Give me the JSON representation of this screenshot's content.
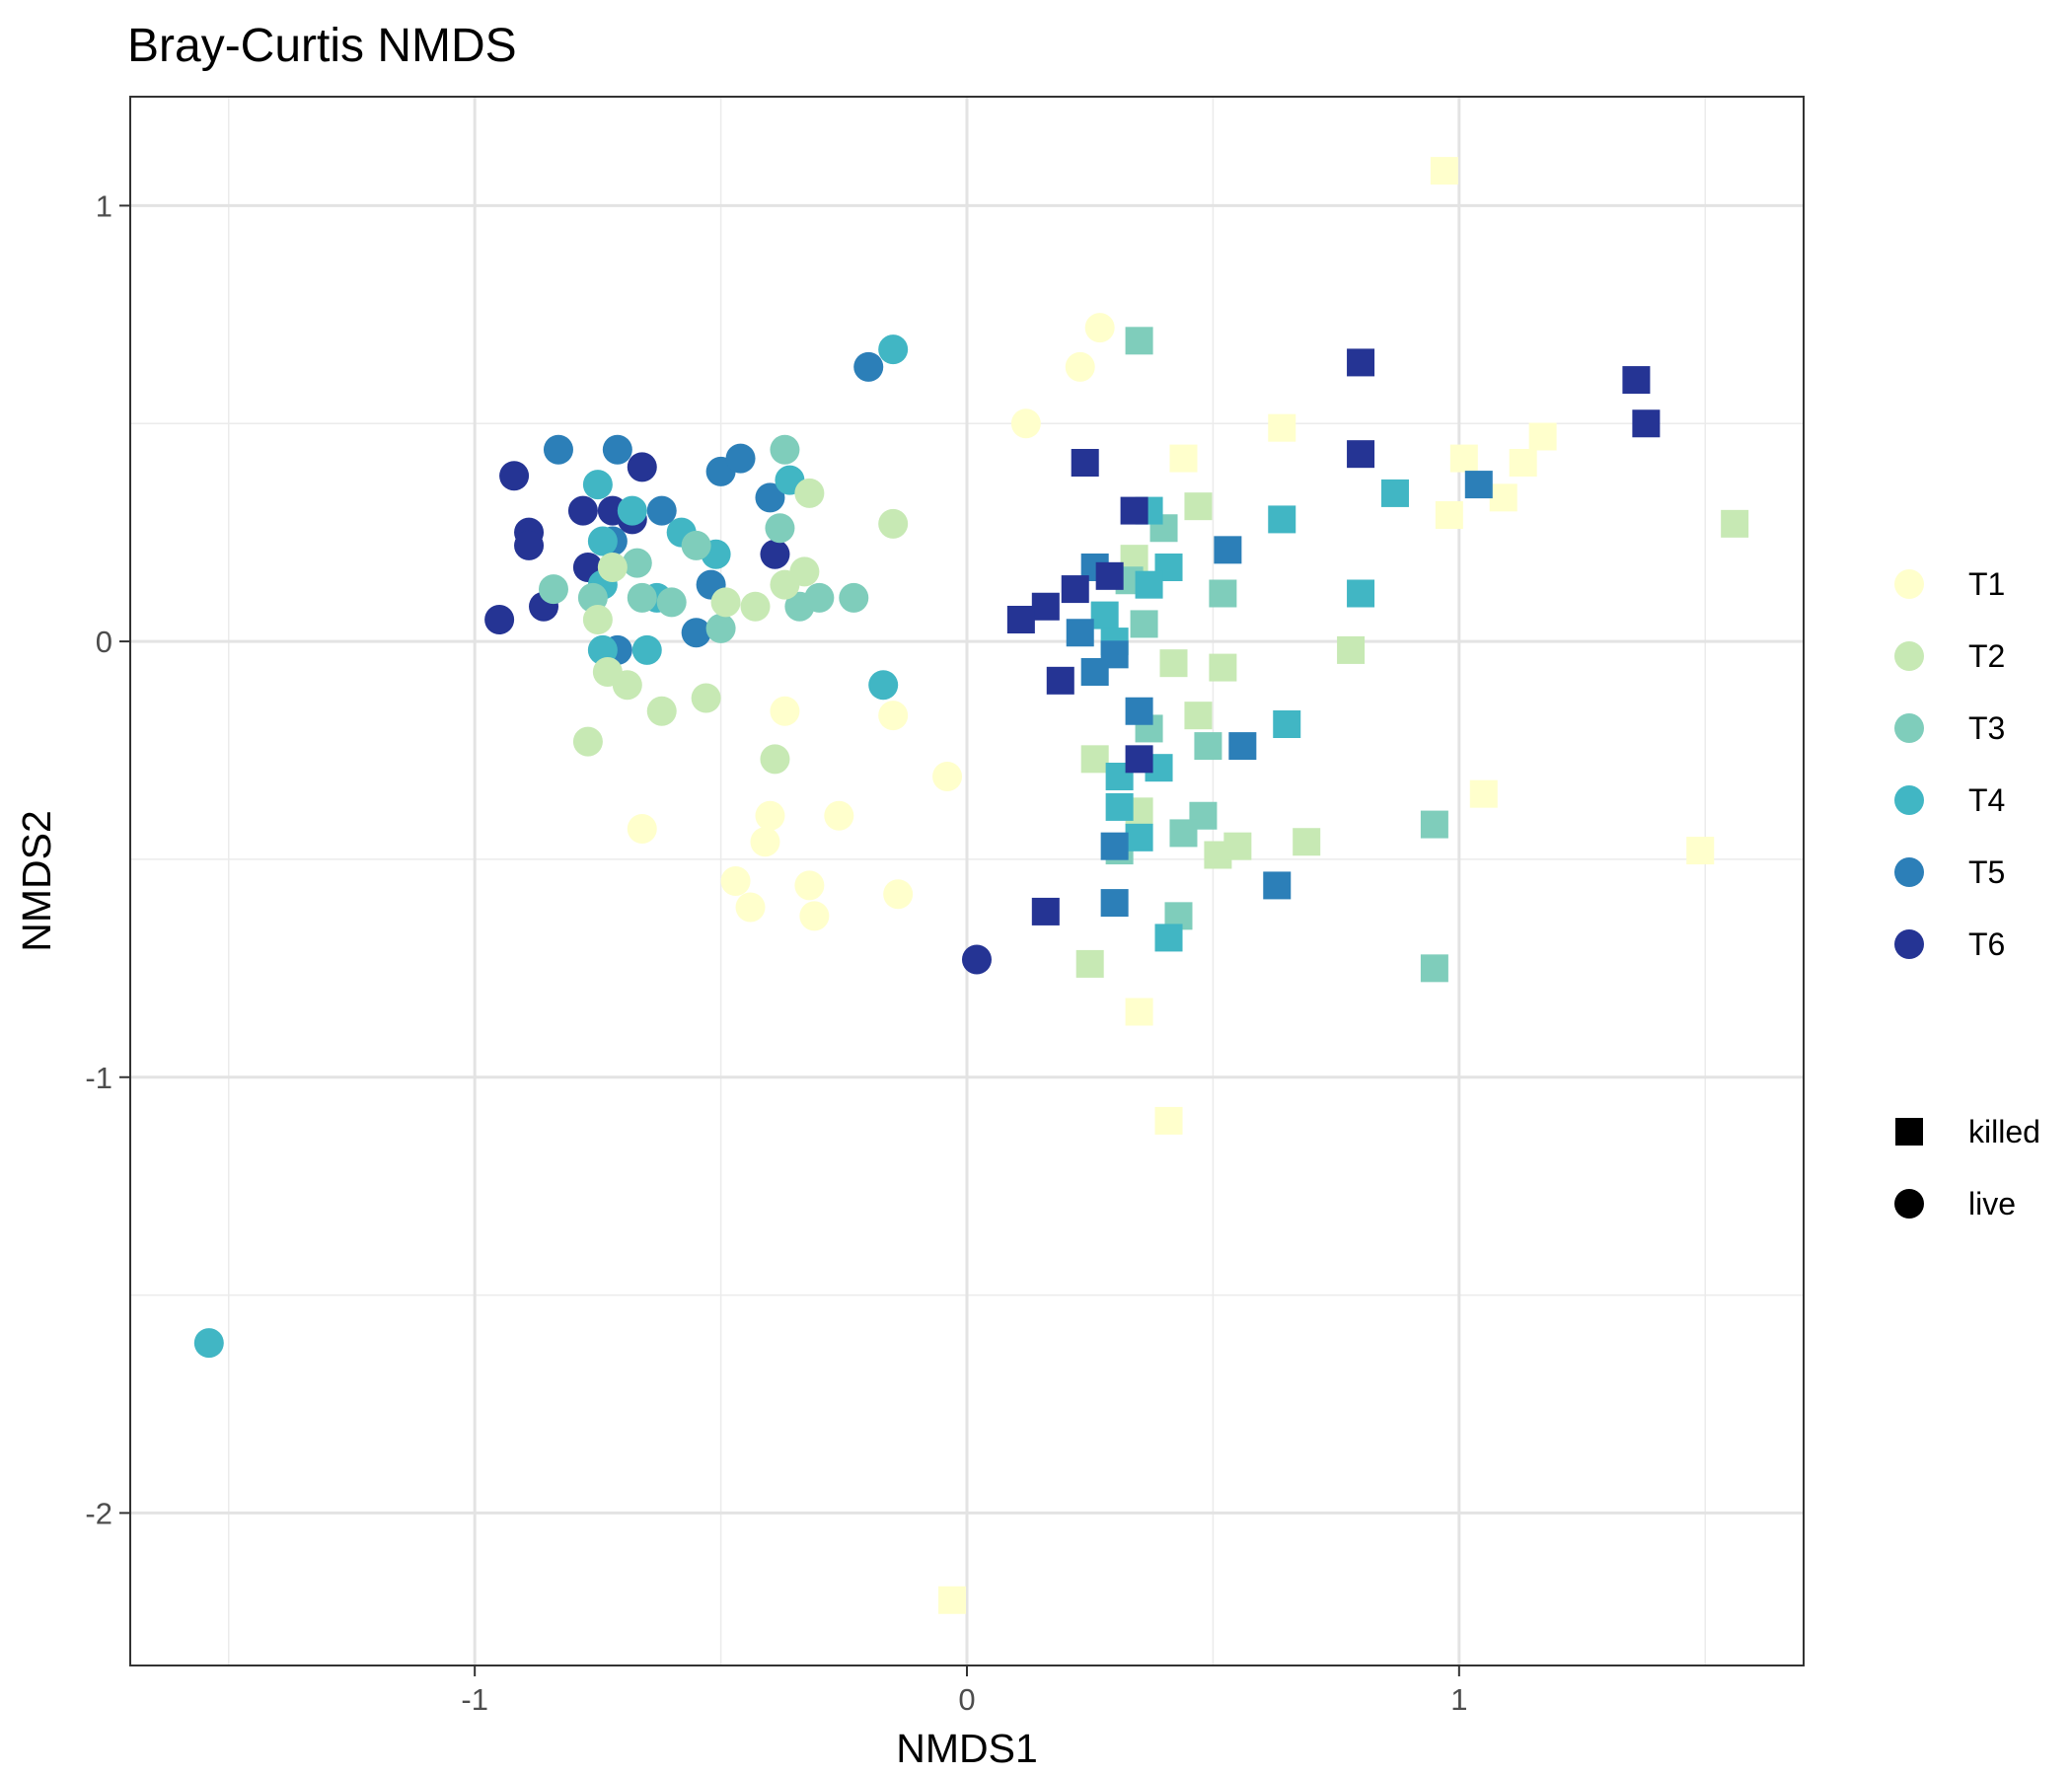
{
  "chart_data": {
    "type": "scatter",
    "title": "Bray-Curtis NMDS",
    "xlabel": "NMDS1",
    "ylabel": "NMDS2",
    "xlim": [
      -1.7,
      1.7
    ],
    "ylim": [
      -2.35,
      1.25
    ],
    "x_ticks": [
      -1,
      0,
      1
    ],
    "y_ticks": [
      1,
      0,
      -1,
      -2
    ],
    "grid": true,
    "legend_position": "right",
    "color_legend": [
      {
        "label": "T1",
        "color": "#ffffcc"
      },
      {
        "label": "T2",
        "color": "#c7e9b4"
      },
      {
        "label": "T3",
        "color": "#7fcdbb"
      },
      {
        "label": "T4",
        "color": "#41b6c4"
      },
      {
        "label": "T5",
        "color": "#2c7fb8"
      },
      {
        "label": "T6",
        "color": "#253494"
      }
    ],
    "shape_legend": [
      {
        "label": "killed",
        "shape": "square"
      },
      {
        "label": "live",
        "shape": "circle"
      }
    ],
    "points": [
      {
        "x": -0.92,
        "y": 0.38,
        "group": "T6",
        "shape": "circle"
      },
      {
        "x": -0.89,
        "y": 0.25,
        "group": "T6",
        "shape": "circle"
      },
      {
        "x": -0.89,
        "y": 0.22,
        "group": "T6",
        "shape": "circle"
      },
      {
        "x": -0.95,
        "y": 0.05,
        "group": "T6",
        "shape": "circle"
      },
      {
        "x": -0.86,
        "y": 0.08,
        "group": "T6",
        "shape": "circle"
      },
      {
        "x": -0.78,
        "y": 0.3,
        "group": "T6",
        "shape": "circle"
      },
      {
        "x": -0.72,
        "y": 0.3,
        "group": "T6",
        "shape": "circle"
      },
      {
        "x": -0.68,
        "y": 0.28,
        "group": "T6",
        "shape": "circle"
      },
      {
        "x": -0.66,
        "y": 0.4,
        "group": "T6",
        "shape": "circle"
      },
      {
        "x": -0.77,
        "y": 0.17,
        "group": "T6",
        "shape": "circle"
      },
      {
        "x": -0.39,
        "y": 0.2,
        "group": "T6",
        "shape": "circle"
      },
      {
        "x": 0.02,
        "y": -0.73,
        "group": "T6",
        "shape": "circle"
      },
      {
        "x": -0.83,
        "y": 0.44,
        "group": "T5",
        "shape": "circle"
      },
      {
        "x": -0.71,
        "y": 0.44,
        "group": "T5",
        "shape": "circle"
      },
      {
        "x": -0.62,
        "y": 0.3,
        "group": "T5",
        "shape": "circle"
      },
      {
        "x": -0.5,
        "y": 0.39,
        "group": "T5",
        "shape": "circle"
      },
      {
        "x": -0.46,
        "y": 0.42,
        "group": "T5",
        "shape": "circle"
      },
      {
        "x": -0.4,
        "y": 0.33,
        "group": "T5",
        "shape": "circle"
      },
      {
        "x": -0.52,
        "y": 0.13,
        "group": "T5",
        "shape": "circle"
      },
      {
        "x": -0.55,
        "y": 0.02,
        "group": "T5",
        "shape": "circle"
      },
      {
        "x": -0.71,
        "y": -0.02,
        "group": "T5",
        "shape": "circle"
      },
      {
        "x": -0.72,
        "y": 0.23,
        "group": "T5",
        "shape": "circle"
      },
      {
        "x": -0.2,
        "y": 0.63,
        "group": "T5",
        "shape": "circle"
      },
      {
        "x": -0.75,
        "y": 0.36,
        "group": "T4",
        "shape": "circle"
      },
      {
        "x": -0.74,
        "y": 0.23,
        "group": "T4",
        "shape": "circle"
      },
      {
        "x": -0.68,
        "y": 0.3,
        "group": "T4",
        "shape": "circle"
      },
      {
        "x": -0.58,
        "y": 0.25,
        "group": "T4",
        "shape": "circle"
      },
      {
        "x": -0.51,
        "y": 0.2,
        "group": "T4",
        "shape": "circle"
      },
      {
        "x": -0.36,
        "y": 0.37,
        "group": "T4",
        "shape": "circle"
      },
      {
        "x": -0.63,
        "y": 0.1,
        "group": "T4",
        "shape": "circle"
      },
      {
        "x": -0.74,
        "y": 0.13,
        "group": "T4",
        "shape": "circle"
      },
      {
        "x": -0.74,
        "y": -0.02,
        "group": "T4",
        "shape": "circle"
      },
      {
        "x": -0.65,
        "y": -0.02,
        "group": "T4",
        "shape": "circle"
      },
      {
        "x": -0.15,
        "y": 0.67,
        "group": "T4",
        "shape": "circle"
      },
      {
        "x": -0.17,
        "y": -0.1,
        "group": "T4",
        "shape": "circle"
      },
      {
        "x": -1.54,
        "y": -1.61,
        "group": "T4",
        "shape": "circle"
      },
      {
        "x": -0.84,
        "y": 0.12,
        "group": "T3",
        "shape": "circle"
      },
      {
        "x": -0.76,
        "y": 0.1,
        "group": "T3",
        "shape": "circle"
      },
      {
        "x": -0.67,
        "y": 0.18,
        "group": "T3",
        "shape": "circle"
      },
      {
        "x": -0.66,
        "y": 0.1,
        "group": "T3",
        "shape": "circle"
      },
      {
        "x": -0.6,
        "y": 0.09,
        "group": "T3",
        "shape": "circle"
      },
      {
        "x": -0.55,
        "y": 0.22,
        "group": "T3",
        "shape": "circle"
      },
      {
        "x": -0.5,
        "y": 0.03,
        "group": "T3",
        "shape": "circle"
      },
      {
        "x": -0.37,
        "y": 0.44,
        "group": "T3",
        "shape": "circle"
      },
      {
        "x": -0.38,
        "y": 0.26,
        "group": "T3",
        "shape": "circle"
      },
      {
        "x": -0.34,
        "y": 0.08,
        "group": "T3",
        "shape": "circle"
      },
      {
        "x": -0.3,
        "y": 0.1,
        "group": "T3",
        "shape": "circle"
      },
      {
        "x": -0.23,
        "y": 0.1,
        "group": "T3",
        "shape": "circle"
      },
      {
        "x": -0.72,
        "y": 0.17,
        "group": "T2",
        "shape": "circle"
      },
      {
        "x": -0.73,
        "y": -0.07,
        "group": "T2",
        "shape": "circle"
      },
      {
        "x": -0.69,
        "y": -0.1,
        "group": "T2",
        "shape": "circle"
      },
      {
        "x": -0.62,
        "y": -0.16,
        "group": "T2",
        "shape": "circle"
      },
      {
        "x": -0.53,
        "y": -0.13,
        "group": "T2",
        "shape": "circle"
      },
      {
        "x": -0.49,
        "y": 0.09,
        "group": "T2",
        "shape": "circle"
      },
      {
        "x": -0.43,
        "y": 0.08,
        "group": "T2",
        "shape": "circle"
      },
      {
        "x": -0.37,
        "y": 0.13,
        "group": "T2",
        "shape": "circle"
      },
      {
        "x": -0.33,
        "y": 0.16,
        "group": "T2",
        "shape": "circle"
      },
      {
        "x": -0.32,
        "y": 0.34,
        "group": "T2",
        "shape": "circle"
      },
      {
        "x": -0.15,
        "y": 0.27,
        "group": "T2",
        "shape": "circle"
      },
      {
        "x": -0.77,
        "y": -0.23,
        "group": "T2",
        "shape": "circle"
      },
      {
        "x": -0.75,
        "y": 0.05,
        "group": "T2",
        "shape": "circle"
      },
      {
        "x": -0.39,
        "y": -0.27,
        "group": "T2",
        "shape": "circle"
      },
      {
        "x": 0.27,
        "y": 0.72,
        "group": "T1",
        "shape": "circle"
      },
      {
        "x": 0.23,
        "y": 0.63,
        "group": "T1",
        "shape": "circle"
      },
      {
        "x": 0.12,
        "y": 0.5,
        "group": "T1",
        "shape": "circle"
      },
      {
        "x": -0.66,
        "y": -0.43,
        "group": "T1",
        "shape": "circle"
      },
      {
        "x": -0.37,
        "y": -0.16,
        "group": "T1",
        "shape": "circle"
      },
      {
        "x": -0.15,
        "y": -0.17,
        "group": "T1",
        "shape": "circle"
      },
      {
        "x": -0.04,
        "y": -0.31,
        "group": "T1",
        "shape": "circle"
      },
      {
        "x": -0.26,
        "y": -0.4,
        "group": "T1",
        "shape": "circle"
      },
      {
        "x": -0.4,
        "y": -0.4,
        "group": "T1",
        "shape": "circle"
      },
      {
        "x": -0.41,
        "y": -0.46,
        "group": "T1",
        "shape": "circle"
      },
      {
        "x": -0.47,
        "y": -0.55,
        "group": "T1",
        "shape": "circle"
      },
      {
        "x": -0.44,
        "y": -0.61,
        "group": "T1",
        "shape": "circle"
      },
      {
        "x": -0.32,
        "y": -0.56,
        "group": "T1",
        "shape": "circle"
      },
      {
        "x": -0.31,
        "y": -0.63,
        "group": "T1",
        "shape": "circle"
      },
      {
        "x": -0.14,
        "y": -0.58,
        "group": "T1",
        "shape": "circle"
      },
      {
        "x": 0.97,
        "y": 1.08,
        "group": "T1",
        "shape": "square"
      },
      {
        "x": 0.64,
        "y": 0.49,
        "group": "T1",
        "shape": "square"
      },
      {
        "x": 0.44,
        "y": 0.42,
        "group": "T1",
        "shape": "square"
      },
      {
        "x": 1.01,
        "y": 0.42,
        "group": "T1",
        "shape": "square"
      },
      {
        "x": 1.13,
        "y": 0.41,
        "group": "T1",
        "shape": "square"
      },
      {
        "x": 1.17,
        "y": 0.47,
        "group": "T1",
        "shape": "square"
      },
      {
        "x": 0.98,
        "y": 0.29,
        "group": "T1",
        "shape": "square"
      },
      {
        "x": 1.09,
        "y": 0.33,
        "group": "T1",
        "shape": "square"
      },
      {
        "x": 1.05,
        "y": -0.35,
        "group": "T1",
        "shape": "square"
      },
      {
        "x": 1.49,
        "y": -0.48,
        "group": "T1",
        "shape": "square"
      },
      {
        "x": 0.35,
        "y": -0.85,
        "group": "T1",
        "shape": "square"
      },
      {
        "x": 0.41,
        "y": -1.1,
        "group": "T1",
        "shape": "square"
      },
      {
        "x": -0.03,
        "y": -2.2,
        "group": "T1",
        "shape": "square"
      },
      {
        "x": 0.47,
        "y": 0.31,
        "group": "T2",
        "shape": "square"
      },
      {
        "x": 1.56,
        "y": 0.27,
        "group": "T2",
        "shape": "square"
      },
      {
        "x": 0.34,
        "y": 0.19,
        "group": "T2",
        "shape": "square"
      },
      {
        "x": 0.42,
        "y": -0.05,
        "group": "T2",
        "shape": "square"
      },
      {
        "x": 0.52,
        "y": -0.06,
        "group": "T2",
        "shape": "square"
      },
      {
        "x": 0.78,
        "y": -0.02,
        "group": "T2",
        "shape": "square"
      },
      {
        "x": 0.47,
        "y": -0.17,
        "group": "T2",
        "shape": "square"
      },
      {
        "x": 0.26,
        "y": -0.27,
        "group": "T2",
        "shape": "square"
      },
      {
        "x": 0.35,
        "y": -0.39,
        "group": "T2",
        "shape": "square"
      },
      {
        "x": 0.51,
        "y": -0.49,
        "group": "T2",
        "shape": "square"
      },
      {
        "x": 0.55,
        "y": -0.47,
        "group": "T2",
        "shape": "square"
      },
      {
        "x": 0.69,
        "y": -0.46,
        "group": "T2",
        "shape": "square"
      },
      {
        "x": 0.25,
        "y": -0.74,
        "group": "T2",
        "shape": "square"
      },
      {
        "x": 0.35,
        "y": 0.69,
        "group": "T3",
        "shape": "square"
      },
      {
        "x": 0.4,
        "y": 0.26,
        "group": "T3",
        "shape": "square"
      },
      {
        "x": 0.33,
        "y": 0.14,
        "group": "T3",
        "shape": "square"
      },
      {
        "x": 0.52,
        "y": 0.11,
        "group": "T3",
        "shape": "square"
      },
      {
        "x": 0.36,
        "y": 0.04,
        "group": "T3",
        "shape": "square"
      },
      {
        "x": 0.37,
        "y": -0.2,
        "group": "T3",
        "shape": "square"
      },
      {
        "x": 0.49,
        "y": -0.24,
        "group": "T3",
        "shape": "square"
      },
      {
        "x": 0.48,
        "y": -0.4,
        "group": "T3",
        "shape": "square"
      },
      {
        "x": 0.44,
        "y": -0.44,
        "group": "T3",
        "shape": "square"
      },
      {
        "x": 0.31,
        "y": -0.48,
        "group": "T3",
        "shape": "square"
      },
      {
        "x": 0.43,
        "y": -0.63,
        "group": "T3",
        "shape": "square"
      },
      {
        "x": 0.95,
        "y": -0.42,
        "group": "T3",
        "shape": "square"
      },
      {
        "x": 0.95,
        "y": -0.75,
        "group": "T3",
        "shape": "square"
      },
      {
        "x": 0.37,
        "y": 0.3,
        "group": "T4",
        "shape": "square"
      },
      {
        "x": 0.64,
        "y": 0.28,
        "group": "T4",
        "shape": "square"
      },
      {
        "x": 0.87,
        "y": 0.34,
        "group": "T4",
        "shape": "square"
      },
      {
        "x": 0.41,
        "y": 0.17,
        "group": "T4",
        "shape": "square"
      },
      {
        "x": 0.37,
        "y": 0.13,
        "group": "T4",
        "shape": "square"
      },
      {
        "x": 0.8,
        "y": 0.11,
        "group": "T4",
        "shape": "square"
      },
      {
        "x": 0.28,
        "y": 0.06,
        "group": "T4",
        "shape": "square"
      },
      {
        "x": 0.3,
        "y": 0.0,
        "group": "T4",
        "shape": "square"
      },
      {
        "x": 0.65,
        "y": -0.19,
        "group": "T4",
        "shape": "square"
      },
      {
        "x": 0.31,
        "y": -0.31,
        "group": "T4",
        "shape": "square"
      },
      {
        "x": 0.39,
        "y": -0.29,
        "group": "T4",
        "shape": "square"
      },
      {
        "x": 0.31,
        "y": -0.38,
        "group": "T4",
        "shape": "square"
      },
      {
        "x": 0.35,
        "y": -0.45,
        "group": "T4",
        "shape": "square"
      },
      {
        "x": 0.41,
        "y": -0.68,
        "group": "T4",
        "shape": "square"
      },
      {
        "x": 1.04,
        "y": 0.36,
        "group": "T5",
        "shape": "square"
      },
      {
        "x": 0.53,
        "y": 0.21,
        "group": "T5",
        "shape": "square"
      },
      {
        "x": 0.26,
        "y": 0.17,
        "group": "T5",
        "shape": "square"
      },
      {
        "x": 0.23,
        "y": 0.02,
        "group": "T5",
        "shape": "square"
      },
      {
        "x": 0.26,
        "y": -0.07,
        "group": "T5",
        "shape": "square"
      },
      {
        "x": 0.3,
        "y": -0.03,
        "group": "T5",
        "shape": "square"
      },
      {
        "x": 0.35,
        "y": -0.16,
        "group": "T5",
        "shape": "square"
      },
      {
        "x": 0.56,
        "y": -0.24,
        "group": "T5",
        "shape": "square"
      },
      {
        "x": 0.3,
        "y": -0.47,
        "group": "T5",
        "shape": "square"
      },
      {
        "x": 0.63,
        "y": -0.56,
        "group": "T5",
        "shape": "square"
      },
      {
        "x": 0.3,
        "y": -0.6,
        "group": "T5",
        "shape": "square"
      },
      {
        "x": 0.8,
        "y": 0.64,
        "group": "T6",
        "shape": "square"
      },
      {
        "x": 0.8,
        "y": 0.43,
        "group": "T6",
        "shape": "square"
      },
      {
        "x": 1.36,
        "y": 0.6,
        "group": "T6",
        "shape": "square"
      },
      {
        "x": 1.38,
        "y": 0.5,
        "group": "T6",
        "shape": "square"
      },
      {
        "x": 0.24,
        "y": 0.41,
        "group": "T6",
        "shape": "square"
      },
      {
        "x": 0.34,
        "y": 0.3,
        "group": "T6",
        "shape": "square"
      },
      {
        "x": 0.22,
        "y": 0.12,
        "group": "T6",
        "shape": "square"
      },
      {
        "x": 0.16,
        "y": 0.08,
        "group": "T6",
        "shape": "square"
      },
      {
        "x": 0.11,
        "y": 0.05,
        "group": "T6",
        "shape": "square"
      },
      {
        "x": 0.29,
        "y": 0.15,
        "group": "T6",
        "shape": "square"
      },
      {
        "x": 0.19,
        "y": -0.09,
        "group": "T6",
        "shape": "square"
      },
      {
        "x": 0.35,
        "y": -0.27,
        "group": "T6",
        "shape": "square"
      },
      {
        "x": 0.16,
        "y": -0.62,
        "group": "T6",
        "shape": "square"
      }
    ]
  }
}
